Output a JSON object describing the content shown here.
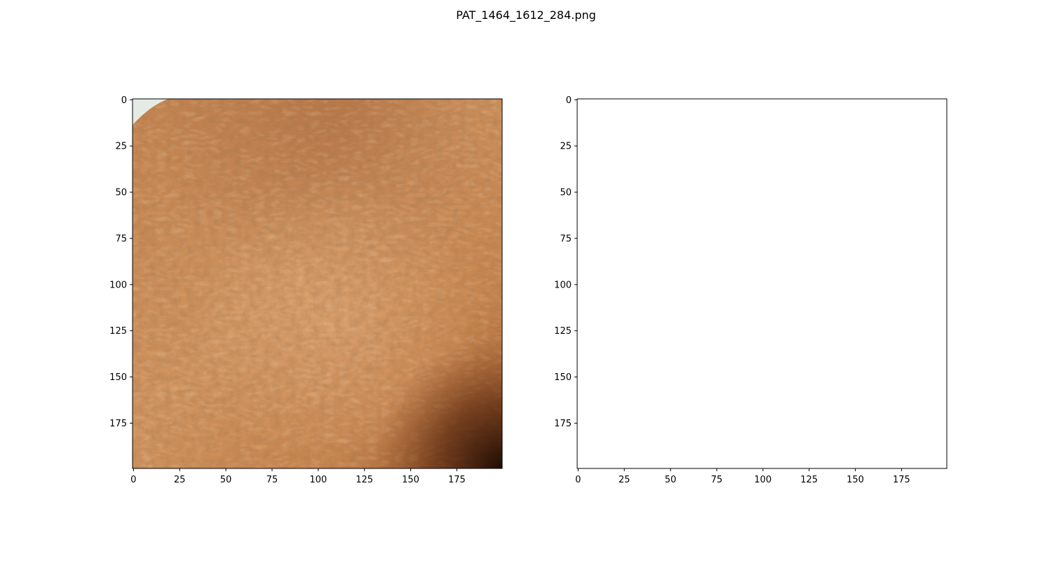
{
  "figure": {
    "title": "PAT_1464_1612_284.png"
  },
  "panels": [
    {
      "name": "skin-photo-panel",
      "content": "skin-texture-image",
      "colors": {
        "base": "#c98753",
        "light": "#dca070",
        "dark": "#8a4a22",
        "corner_dark": "#2a1206",
        "corner_light": "#e6ece6"
      }
    },
    {
      "name": "blank-mask-panel",
      "content": "empty",
      "colors": {
        "base": "#ffffff"
      }
    }
  ],
  "axes": {
    "x_ticks": [
      0,
      25,
      50,
      75,
      100,
      125,
      150,
      175
    ],
    "y_ticks": [
      0,
      25,
      50,
      75,
      100,
      125,
      150,
      175
    ],
    "x_range": [
      0,
      200
    ],
    "y_range": [
      0,
      200
    ]
  }
}
